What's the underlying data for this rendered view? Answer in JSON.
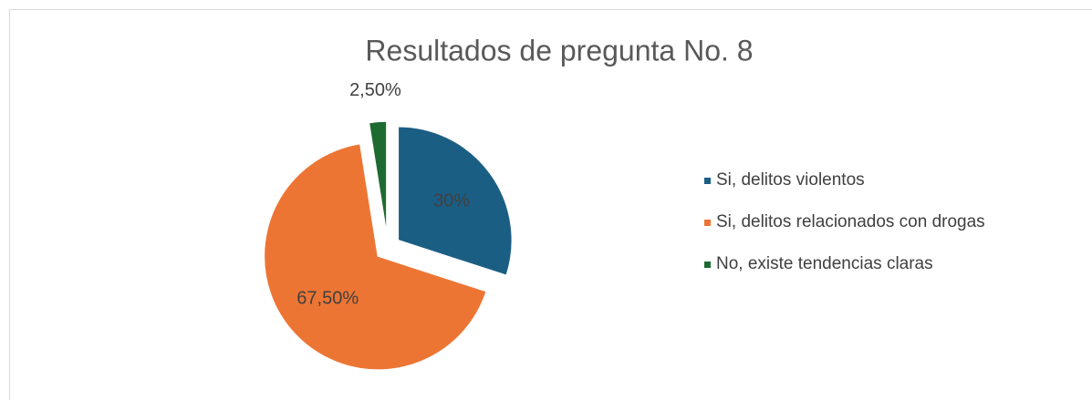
{
  "chart_data": {
    "type": "pie",
    "title": "Resultados de pregunta No. 8",
    "categories": [
      "Si, delitos violentos",
      "Si, delitos relacionados con drogas",
      "No, existe tendencias claras"
    ],
    "values": [
      30,
      67.5,
      2.5
    ],
    "value_labels": [
      "30%",
      "67,50%",
      "2,50%"
    ],
    "colors": [
      "#1b5e84",
      "#ed7534",
      "#1e6b31"
    ],
    "legend": "right"
  }
}
